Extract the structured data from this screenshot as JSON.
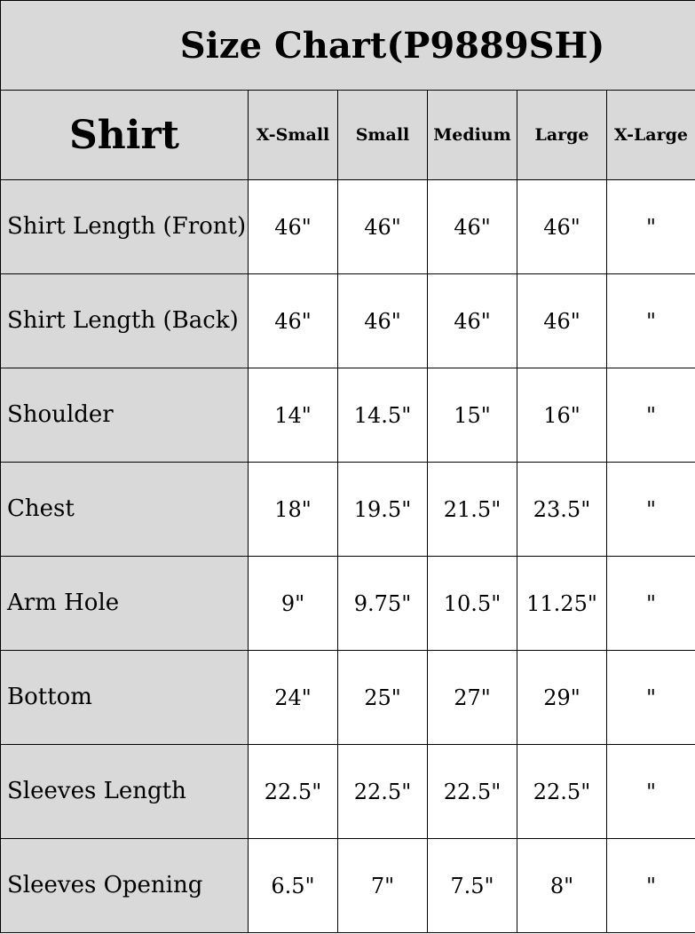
{
  "title": "Size Chart(P9889SH)",
  "header": {
    "category": "Shirt",
    "sizes": [
      "X-Small",
      "Small",
      "Medium",
      "Large",
      "X-Large"
    ]
  },
  "rows": [
    {
      "label": "Shirt Length (Front)",
      "values": [
        "46\"",
        "46\"",
        "46\"",
        "46\"",
        "\""
      ]
    },
    {
      "label": "Shirt Length (Back)",
      "values": [
        "46\"",
        "46\"",
        "46\"",
        "46\"",
        "\""
      ]
    },
    {
      "label": "Shoulder",
      "values": [
        "14\"",
        "14.5\"",
        "15\"",
        "16\"",
        "\""
      ]
    },
    {
      "label": "Chest",
      "values": [
        "18\"",
        "19.5\"",
        "21.5\"",
        "23.5\"",
        "\""
      ]
    },
    {
      "label": "Arm Hole",
      "values": [
        "9\"",
        "9.75\"",
        "10.5\"",
        "11.25\"",
        "\""
      ]
    },
    {
      "label": "Bottom",
      "values": [
        "24\"",
        "25\"",
        "27\"",
        "29\"",
        "\""
      ]
    },
    {
      "label": "Sleeves Length",
      "values": [
        "22.5\"",
        "22.5\"",
        "22.5\"",
        "22.5\"",
        "\""
      ]
    },
    {
      "label": "Sleeves Opening",
      "values": [
        "6.5\"",
        "7\"",
        "7.5\"",
        "8\"",
        "\""
      ]
    }
  ]
}
